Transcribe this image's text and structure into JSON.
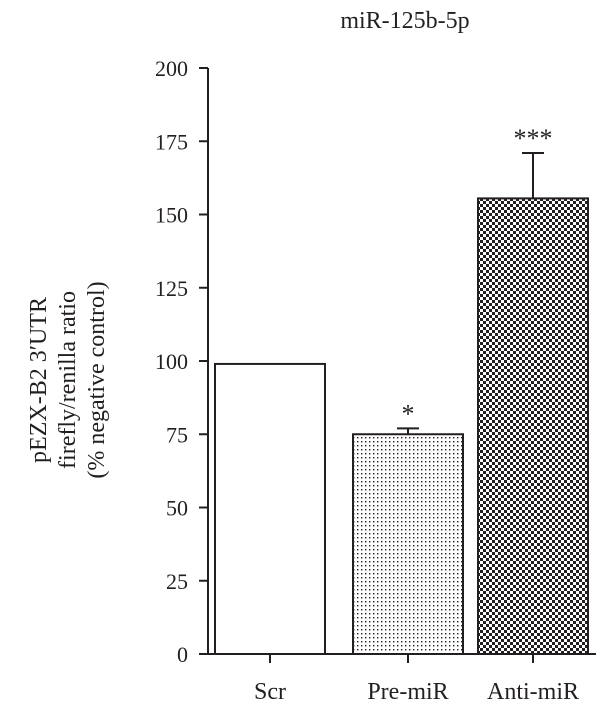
{
  "chart_data": {
    "type": "bar",
    "title": "miR-125b-5p",
    "ylabel_lines": [
      "pEZX-B2 3′UTR",
      "firefly/renilla ratio",
      "(% negative control)"
    ],
    "xlabel": "",
    "categories": [
      "Scr",
      "Pre-miR",
      "Anti-miR"
    ],
    "values": [
      99,
      75,
      155.5
    ],
    "errors": [
      0,
      2,
      15.5
    ],
    "significance": [
      "",
      "*",
      "***"
    ],
    "fills": [
      "plain",
      "dots",
      "checker"
    ],
    "ylim": [
      0,
      200
    ],
    "yticks": [
      "0",
      "25",
      "50",
      "75",
      "100",
      "125",
      "150",
      "175",
      "200"
    ],
    "grid": false,
    "legend": "none",
    "colors": {
      "ink": "#231f20",
      "background": "#ffffff"
    }
  }
}
